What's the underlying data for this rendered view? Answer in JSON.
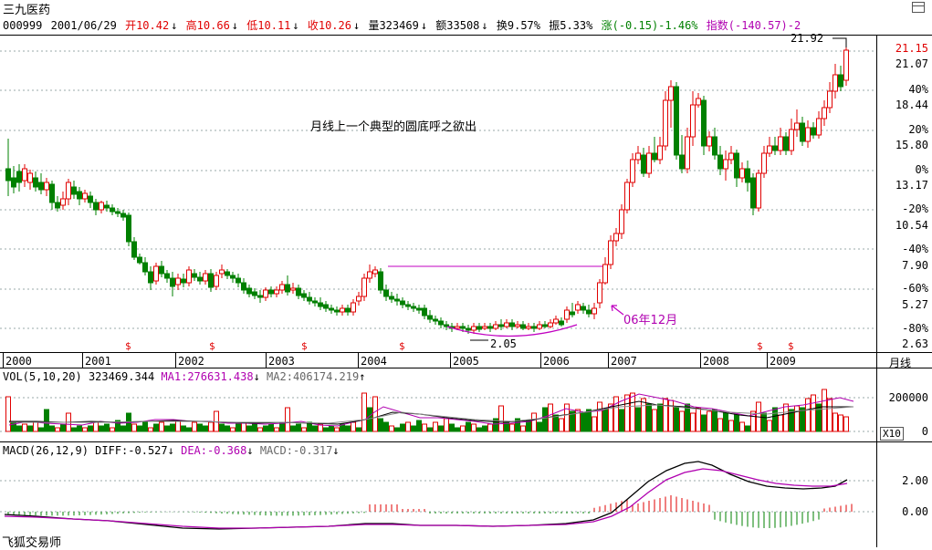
{
  "header": {
    "title": "三九医药",
    "code": "000999",
    "date": "2001/06/29",
    "open": "开10.42",
    "high": "高10.66",
    "low": "低10.11",
    "close": "收10.26",
    "volume": "量323469",
    "amount": "额33508",
    "turnover": "换9.57%",
    "amplitude": "振5.33%",
    "change": "涨(-0.15)-1.46%",
    "index": "指数(-140.57)-2",
    "arrow": "↓"
  },
  "main_chart": {
    "annotation": "月线上一个典型的圆底呼之欲出",
    "label_high": "21.92",
    "label_low": "2.05",
    "label_point": "06年12月",
    "price_ticks": [
      "21.15",
      "21.07",
      "18.44",
      "15.80",
      "13.17",
      "10.54",
      "7.90",
      "5.27",
      "2.63"
    ],
    "percent_ticks": [
      "40%",
      "20%",
      "0%",
      "-20%",
      "-40%",
      "-60%",
      "-80%"
    ],
    "x_axis": [
      "2000",
      "2001",
      "2002",
      "2003",
      "2004",
      "2005",
      "2006",
      "2007",
      "2008",
      "2009"
    ],
    "period_label": "月线",
    "marker": "$",
    "colors": {
      "up": "#e00000",
      "down": "#008000",
      "ma": "#b000b0"
    }
  },
  "volume_panel": {
    "title": "VOL(5,10,20)",
    "value": "323469.344",
    "ma1": "MA1:276631.438",
    "ma2": "MA2:406174.219",
    "arrow_ma1": "↓",
    "arrow_ma2": "↑",
    "ticks": [
      "200000",
      "0"
    ],
    "unit": "X10"
  },
  "macd_panel": {
    "title": "MACD(26,12,9)",
    "diff": "DIFF:-0.527",
    "dea": "DEA:-0.368",
    "macd": "MACD:-0.317",
    "arrow": "↓",
    "ticks": [
      "2.00",
      "0.00"
    ]
  },
  "footer": {
    "brand": "飞狐交易师"
  }
}
